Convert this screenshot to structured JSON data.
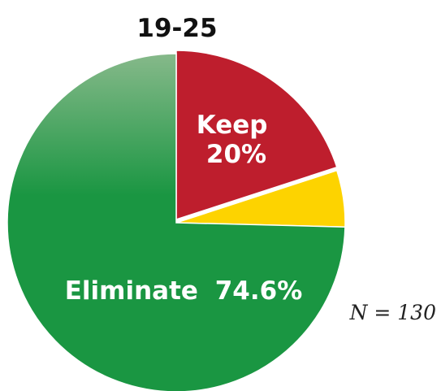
{
  "chart_data": {
    "type": "pie",
    "title": "19-25",
    "slices": [
      {
        "label": "Keep",
        "value": 20,
        "value_text": "20%",
        "color": "#be1e2d"
      },
      {
        "label": "",
        "value": 5.4,
        "value_text": "",
        "color": "#fdd300"
      },
      {
        "label": "Eliminate",
        "value": 74.6,
        "value_text": "74.6%",
        "color": "#1a9642"
      }
    ],
    "annotation": "N = 130",
    "start_angle": "12 o'clock",
    "direction": "clockwise",
    "exploded_slice": "Keep, shifted up",
    "eliminate_gradient_top": "#86b98a"
  }
}
